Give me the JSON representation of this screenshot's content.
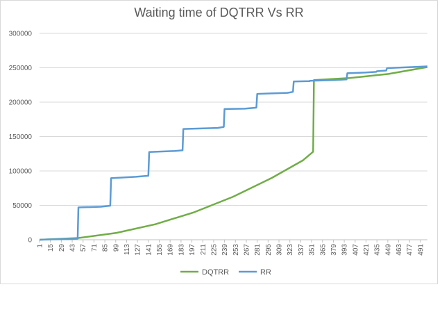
{
  "chart_data": {
    "type": "line",
    "title": "Waiting time of DQTRR Vs RR",
    "xlabel": "",
    "ylabel": "",
    "x_range": [
      1,
      500
    ],
    "x_tick_labels": [
      "1",
      "15",
      "29",
      "43",
      "57",
      "71",
      "85",
      "99",
      "113",
      "127",
      "141",
      "155",
      "169",
      "183",
      "197",
      "211",
      "225",
      "239",
      "253",
      "267",
      "281",
      "295",
      "309",
      "323",
      "337",
      "351",
      "365",
      "379",
      "393",
      "407",
      "421",
      "435",
      "449",
      "463",
      "477",
      "491"
    ],
    "ylim": [
      0,
      300000
    ],
    "y_tick_labels": [
      "0",
      "50000",
      "100000",
      "150000",
      "200000",
      "250000",
      "300000"
    ],
    "y_ticks": [
      0,
      50000,
      100000,
      150000,
      200000,
      250000,
      300000
    ],
    "grid": true,
    "legend_position": "bottom",
    "series": [
      {
        "name": "DQTRR",
        "color": "#70ad47",
        "x": [
          1,
          51,
          100,
          150,
          200,
          250,
          300,
          340,
          353,
          354,
          400,
          450,
          500
        ],
        "y": [
          0,
          2500,
          10000,
          22500,
          40000,
          62500,
          90000,
          115600,
          128000,
          232000,
          235000,
          241000,
          251000
        ]
      },
      {
        "name": "RR",
        "color": "#5b9bd5",
        "x": [
          1,
          15,
          43,
          50,
          51,
          80,
          92,
          93,
          125,
          141,
          142,
          175,
          185,
          186,
          230,
          238,
          239,
          265,
          280,
          281,
          320,
          327,
          328,
          348,
          349,
          380,
          396,
          397,
          420,
          434,
          435,
          447,
          448,
          480,
          500
        ],
        "y": [
          0,
          500,
          1000,
          1500,
          47000,
          48000,
          49500,
          89500,
          91500,
          93000,
          127500,
          129000,
          130000,
          161000,
          162500,
          164000,
          190000,
          190500,
          192000,
          212000,
          213500,
          215000,
          230000,
          230500,
          231000,
          232000,
          233000,
          242000,
          243000,
          244000,
          245000,
          246000,
          249500,
          251000,
          252000
        ]
      }
    ]
  }
}
